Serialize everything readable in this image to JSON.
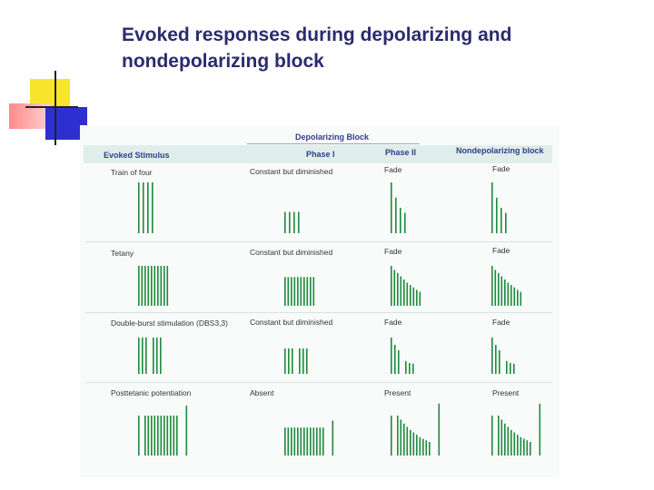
{
  "title_line1": "Evoked responses during depolarizing and",
  "title_line2": "nondepolarizing block",
  "bar_color": "#1e8a3c",
  "headers": {
    "depolarizing_block": "Depolarizing Block",
    "evoked_stimulus": "Evoked Stimulus",
    "phase_1": "Phase I",
    "phase_2": "Phase II",
    "nondepolarizing_block": "Nondepolarizing block"
  },
  "rows": [
    {
      "stimulus": "Train of four",
      "phase_1": "Constant but diminished",
      "phase_2": "Fade",
      "nondepolarizing": "Fade",
      "stim_bars": [
        1,
        1,
        1,
        1
      ],
      "p1_bars": [
        1,
        1,
        1,
        1
      ],
      "p2_bars": [
        1,
        0.7,
        0.5,
        0.4
      ],
      "nd_bars": [
        1,
        0.7,
        0.5,
        0.4
      ]
    },
    {
      "stimulus": "Tetany",
      "phase_1": "Constant but diminished",
      "phase_2": "Fade",
      "nondepolarizing": "Fade",
      "stim_bars": [
        1,
        1,
        1,
        1,
        1,
        1,
        1,
        1,
        1,
        1
      ],
      "p1_bars": [
        1,
        1,
        1,
        1,
        1,
        1,
        1,
        1,
        1,
        1
      ],
      "p2_bars": [
        1,
        0.9,
        0.82,
        0.74,
        0.66,
        0.58,
        0.52,
        0.46,
        0.4,
        0.35
      ],
      "nd_bars": [
        1,
        0.9,
        0.82,
        0.74,
        0.66,
        0.58,
        0.52,
        0.46,
        0.4,
        0.35
      ]
    },
    {
      "stimulus": "Double-burst stimulation (DBS3,3)",
      "phase_1": "Constant but diminished",
      "phase_2": "Fade",
      "nondepolarizing": "Fade",
      "stim_bars": [
        1,
        1,
        1,
        0,
        1,
        1,
        1
      ],
      "p1_bars": [
        1,
        1,
        1,
        0,
        1,
        1,
        1
      ],
      "p2_bars": [
        1,
        0.8,
        0.65,
        0,
        0.35,
        0.3,
        0.28
      ],
      "nd_bars": [
        1,
        0.8,
        0.65,
        0,
        0.35,
        0.3,
        0.28
      ]
    },
    {
      "stimulus": "Posttetanic potentiation",
      "phase_1": "Absent",
      "phase_2": "Present",
      "nondepolarizing": "Present",
      "stim_bars": [
        1,
        0,
        1,
        1,
        1,
        1,
        1,
        1,
        1,
        1,
        1,
        1,
        1,
        0,
        0,
        1.25
      ],
      "p1_bars": [
        1,
        1,
        1,
        1,
        1,
        1,
        1,
        1,
        1,
        1,
        1,
        1,
        1,
        0,
        0,
        1.25
      ],
      "p2_bars": [
        1,
        0,
        1,
        0.9,
        0.8,
        0.72,
        0.64,
        0.58,
        0.52,
        0.46,
        0.42,
        0.38,
        0.34,
        0,
        0,
        1.3
      ],
      "nd_bars": [
        1,
        0,
        1,
        0.9,
        0.8,
        0.72,
        0.64,
        0.58,
        0.52,
        0.46,
        0.42,
        0.38,
        0.34,
        0,
        0,
        1.3
      ]
    }
  ]
}
